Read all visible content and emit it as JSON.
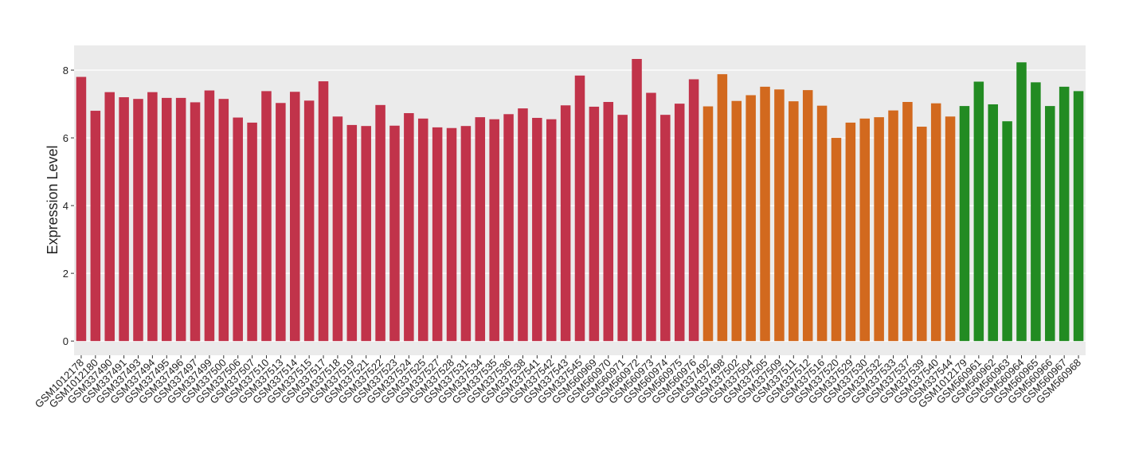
{
  "chart_data": {
    "type": "bar",
    "y_label": "Expression Level",
    "categories": [
      "GSM1012178",
      "GSM1012180",
      "GSM337490",
      "GSM337491",
      "GSM337493",
      "GSM337494",
      "GSM337495",
      "GSM337496",
      "GSM337497",
      "GSM337499",
      "GSM337500",
      "GSM337506",
      "GSM337507",
      "GSM337510",
      "GSM337513",
      "GSM337514",
      "GSM337515",
      "GSM337517",
      "GSM337518",
      "GSM337519",
      "GSM337521",
      "GSM337522",
      "GSM337523",
      "GSM337524",
      "GSM337525",
      "GSM337527",
      "GSM337528",
      "GSM337531",
      "GSM337534",
      "GSM337535",
      "GSM337536",
      "GSM337538",
      "GSM337541",
      "GSM337542",
      "GSM337543",
      "GSM337545",
      "GSM560969",
      "GSM560970",
      "GSM560971",
      "GSM560972",
      "GSM560973",
      "GSM560974",
      "GSM560975",
      "GSM560976",
      "GSM337492",
      "GSM337498",
      "GSM337502",
      "GSM337504",
      "GSM337505",
      "GSM337509",
      "GSM337511",
      "GSM337512",
      "GSM337516",
      "GSM337520",
      "GSM337529",
      "GSM337530",
      "GSM337532",
      "GSM337533",
      "GSM337537",
      "GSM337539",
      "GSM337540",
      "GSM337544",
      "GSM1012179",
      "GSM560961",
      "GSM560962",
      "GSM560963",
      "GSM560964",
      "GSM560965",
      "GSM560966",
      "GSM560967",
      "GSM560968"
    ],
    "values": [
      7.8,
      6.8,
      7.35,
      7.2,
      7.15,
      7.35,
      7.18,
      7.18,
      7.05,
      7.4,
      7.15,
      6.6,
      6.45,
      7.38,
      7.03,
      7.36,
      7.1,
      7.67,
      6.63,
      6.38,
      6.35,
      6.97,
      6.36,
      6.73,
      6.57,
      6.31,
      6.29,
      6.35,
      6.61,
      6.55,
      6.7,
      6.87,
      6.59,
      6.55,
      6.96,
      7.84,
      6.92,
      7.06,
      6.68,
      8.33,
      7.33,
      6.68,
      7.01,
      7.73,
      6.93,
      7.88,
      7.09,
      7.26,
      7.51,
      7.43,
      7.08,
      7.41,
      6.95,
      6.0,
      6.45,
      6.57,
      6.61,
      6.81,
      7.06,
      6.33,
      7.02,
      6.63,
      6.94,
      7.66,
      6.99,
      6.49,
      8.23,
      7.64,
      6.94,
      7.51,
      7.38
    ],
    "colors": [
      "#C1334A",
      "#C1334A",
      "#C1334A",
      "#C1334A",
      "#C1334A",
      "#C1334A",
      "#C1334A",
      "#C1334A",
      "#C1334A",
      "#C1334A",
      "#C1334A",
      "#C1334A",
      "#C1334A",
      "#C1334A",
      "#C1334A",
      "#C1334A",
      "#C1334A",
      "#C1334A",
      "#C1334A",
      "#C1334A",
      "#C1334A",
      "#C1334A",
      "#C1334A",
      "#C1334A",
      "#C1334A",
      "#C1334A",
      "#C1334A",
      "#C1334A",
      "#C1334A",
      "#C1334A",
      "#C1334A",
      "#C1334A",
      "#C1334A",
      "#C1334A",
      "#C1334A",
      "#C1334A",
      "#C1334A",
      "#C1334A",
      "#C1334A",
      "#C1334A",
      "#C1334A",
      "#C1334A",
      "#C1334A",
      "#C1334A",
      "#D2691E",
      "#D2691E",
      "#D2691E",
      "#D2691E",
      "#D2691E",
      "#D2691E",
      "#D2691E",
      "#D2691E",
      "#D2691E",
      "#D2691E",
      "#D2691E",
      "#D2691E",
      "#D2691E",
      "#D2691E",
      "#D2691E",
      "#D2691E",
      "#D2691E",
      "#D2691E",
      "#228B22",
      "#228B22",
      "#228B22",
      "#228B22",
      "#228B22",
      "#228B22",
      "#228B22",
      "#228B22",
      "#228B22"
    ],
    "ylim": [
      -0.42,
      8.73
    ],
    "yticks": [
      0,
      2,
      4,
      6,
      8
    ],
    "grid": true
  }
}
